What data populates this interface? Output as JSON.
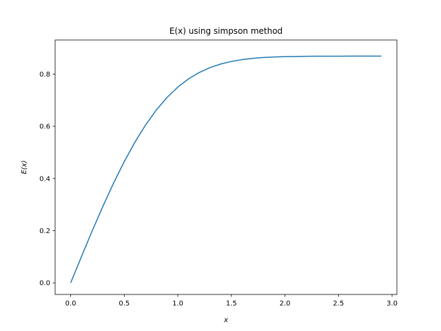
{
  "chart_data": {
    "type": "line",
    "title": "E(x) using simpson method",
    "xlabel": "x",
    "ylabel": "E(x)",
    "xlim": [
      -0.145,
      3.045
    ],
    "ylim": [
      -0.0443,
      0.9305
    ],
    "xticks": [
      0.0,
      0.5,
      1.0,
      1.5,
      2.0,
      2.5,
      3.0
    ],
    "xtick_labels": [
      "0.0",
      "0.5",
      "1.0",
      "1.5",
      "2.0",
      "2.5",
      "3.0"
    ],
    "yticks": [
      0.0,
      0.2,
      0.4,
      0.6,
      0.8
    ],
    "ytick_labels": [
      "0.0",
      "0.2",
      "0.4",
      "0.6",
      "0.8"
    ],
    "grid": false,
    "series": [
      {
        "color": "#1f77b4",
        "x": [
          0.0,
          0.1,
          0.2,
          0.3,
          0.4,
          0.5,
          0.6,
          0.7,
          0.8,
          0.9,
          1.0,
          1.1,
          1.2,
          1.3,
          1.4,
          1.5,
          1.6,
          1.7,
          1.8,
          1.9,
          2.0,
          2.1,
          2.2,
          2.3,
          2.4,
          2.5,
          2.6,
          2.7,
          2.8,
          2.9
        ],
        "y": [
          0.0,
          0.0999,
          0.1981,
          0.2926,
          0.382,
          0.4646,
          0.5393,
          0.6055,
          0.6626,
          0.7106,
          0.75,
          0.7815,
          0.806,
          0.8246,
          0.8384,
          0.8484,
          0.8554,
          0.8602,
          0.8634,
          0.8655,
          0.8667,
          0.8675,
          0.868,
          0.8683,
          0.8684,
          0.8685,
          0.8686,
          0.8686,
          0.8686,
          0.8686
        ]
      }
    ]
  }
}
